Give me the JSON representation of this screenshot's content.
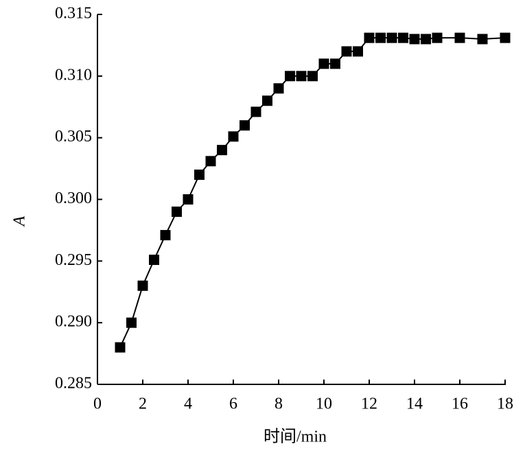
{
  "chart_data": {
    "type": "line",
    "xlabel": "时间/min",
    "ylabel": "A",
    "x": [
      1,
      1.5,
      2,
      2.5,
      3,
      3.5,
      4,
      4.5,
      5,
      5.5,
      6,
      6.5,
      7,
      7.5,
      8,
      8.5,
      9,
      9.5,
      10,
      10.5,
      11,
      11.5,
      12,
      12.5,
      13,
      13.5,
      14,
      14.5,
      15,
      16,
      17,
      18
    ],
    "series": [
      {
        "color": "#000000",
        "values": [
          0.288,
          0.29,
          0.293,
          0.2951,
          0.2971,
          0.299,
          0.3,
          0.302,
          0.3031,
          0.304,
          0.3051,
          0.306,
          0.3071,
          0.308,
          0.309,
          0.31,
          0.31,
          0.31,
          0.311,
          0.311,
          0.312,
          0.312,
          0.3131,
          0.3131,
          0.3131,
          0.3131,
          0.313,
          0.313,
          0.3131,
          0.3131,
          0.313,
          0.3131
        ]
      }
    ],
    "xlim": [
      0,
      18
    ],
    "xticks": [
      0,
      2,
      4,
      6,
      8,
      10,
      12,
      14,
      16,
      18
    ],
    "ylim": [
      0.285,
      0.315
    ],
    "yticks": [
      0.285,
      {
        "value": 0.29,
        "label": "0.290"
      },
      0.295,
      {
        "value": 0.3,
        "label": "0.300"
      },
      0.305,
      {
        "value": 0.31,
        "label": "0.310"
      },
      0.315
    ]
  }
}
